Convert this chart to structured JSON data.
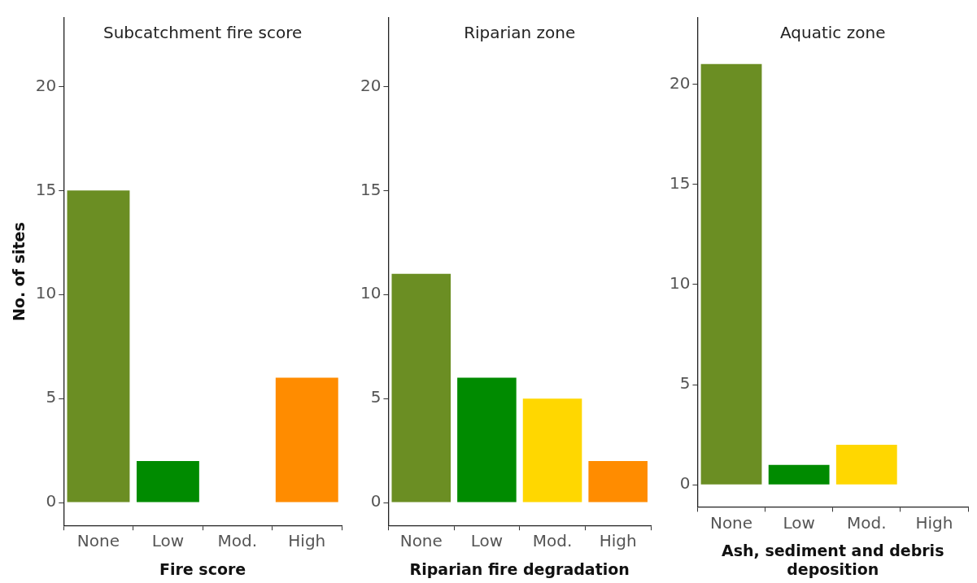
{
  "chart_data": [
    {
      "type": "bar",
      "title": "Subcatchment fire score",
      "xlabel": "Fire score",
      "ylabel": "No. of sites",
      "categories": [
        "None",
        "Low",
        "Mod.",
        "High"
      ],
      "values": [
        15,
        2,
        0,
        6
      ],
      "colors": [
        "#6b8e23",
        "#008b00",
        "#ffd700",
        "#ff8c00"
      ],
      "ylim": [
        -1.1,
        23.3
      ],
      "yticks": [
        0,
        5,
        10,
        15,
        20
      ],
      "grid": false,
      "legend": false
    },
    {
      "type": "bar",
      "title": "Riparian zone",
      "xlabel": "Riparian fire degradation",
      "categories": [
        "None",
        "Low",
        "Mod.",
        "High"
      ],
      "values": [
        11,
        6,
        5,
        2
      ],
      "colors": [
        "#6b8e23",
        "#008b00",
        "#ffd700",
        "#ff8c00"
      ],
      "ylim": [
        -1.1,
        23.3
      ],
      "yticks": [
        0,
        5,
        10,
        15,
        20
      ],
      "grid": false,
      "legend": false
    },
    {
      "type": "bar",
      "title": "Aquatic zone",
      "xlabel": "Ash, sediment and debris deposition",
      "categories": [
        "None",
        "Low",
        "Mod.",
        "High"
      ],
      "values": [
        21,
        1,
        2,
        0
      ],
      "colors": [
        "#6b8e23",
        "#008b00",
        "#ffd700",
        "#ff8c00"
      ],
      "ylim": [
        -1.1,
        23.3
      ],
      "yticks": [
        0,
        5,
        10,
        15,
        20
      ],
      "grid": false,
      "legend": false
    }
  ]
}
